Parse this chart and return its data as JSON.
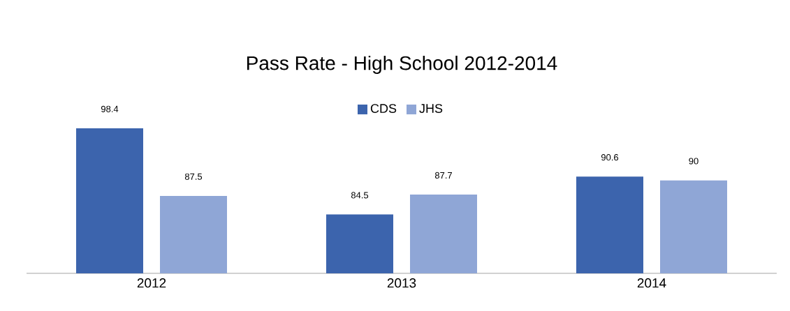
{
  "chart_data": {
    "type": "bar",
    "title": "Pass Rate - High School 2012-2014",
    "categories": [
      "2012",
      "2013",
      "2014"
    ],
    "series": [
      {
        "name": "CDS",
        "color": "#3c64ad",
        "values": [
          98.4,
          84.5,
          90.6
        ]
      },
      {
        "name": "JHS",
        "color": "#8fa6d6",
        "values": [
          87.5,
          87.7,
          90
        ]
      }
    ],
    "ylim": [
      75,
      98.4
    ],
    "data_labels": true,
    "legend": "top",
    "tick_labels": "x",
    "grid": false
  }
}
